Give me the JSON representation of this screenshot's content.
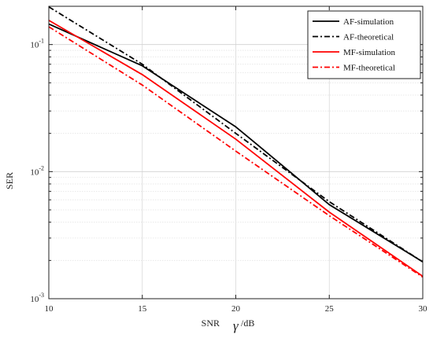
{
  "chart_data": {
    "type": "line",
    "xlabel": "SNR",
    "xlabel_symbol": "γ",
    "xlabel_unit": "/dB",
    "ylabel": "SER",
    "xlim": [
      10,
      30
    ],
    "ylim": [
      0.001,
      0.2
    ],
    "yscale": "log",
    "x_ticks": [
      10,
      15,
      20,
      25,
      30
    ],
    "y_ticks": [
      {
        "value": 0.1,
        "base": "10",
        "exp": "-1"
      },
      {
        "value": 0.01,
        "base": "10",
        "exp": "-2"
      },
      {
        "value": 0.001,
        "base": "10",
        "exp": "-3"
      }
    ],
    "grid": true,
    "legend_position": "top-right",
    "series": [
      {
        "name": "AF-simulation",
        "color": "#000000",
        "style": "solid",
        "x": [
          10,
          15,
          20,
          21,
          25,
          30
        ],
        "y": [
          0.145,
          0.068,
          0.0225,
          0.017,
          0.0055,
          0.00195
        ]
      },
      {
        "name": "AF-theoretical",
        "color": "#000000",
        "style": "dashdot",
        "x": [
          10,
          15,
          20,
          25,
          30
        ],
        "y": [
          0.198,
          0.07,
          0.02,
          0.0058,
          0.00195
        ]
      },
      {
        "name": "MF-simulation",
        "color": "#ff0000",
        "style": "solid",
        "x": [
          10,
          15,
          20,
          25,
          30
        ],
        "y": [
          0.155,
          0.058,
          0.018,
          0.0048,
          0.0015
        ]
      },
      {
        "name": "MF-theoretical",
        "color": "#ff0000",
        "style": "dashdot",
        "x": [
          10,
          15,
          20,
          25,
          30
        ],
        "y": [
          0.138,
          0.048,
          0.0145,
          0.0045,
          0.00148
        ]
      }
    ]
  }
}
